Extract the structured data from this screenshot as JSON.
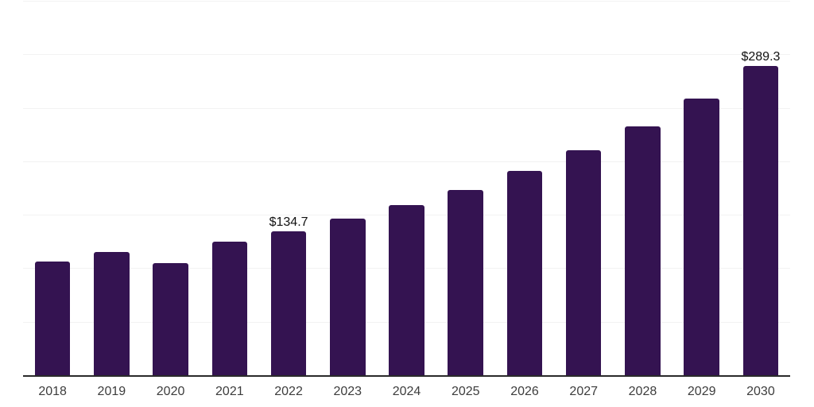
{
  "chart_data": {
    "type": "bar",
    "title": "",
    "xlabel": "",
    "ylabel": "",
    "categories": [
      "2018",
      "2019",
      "2020",
      "2021",
      "2022",
      "2023",
      "2024",
      "2025",
      "2026",
      "2027",
      "2028",
      "2029",
      "2030"
    ],
    "values": [
      106.0,
      115.1,
      105.0,
      124.8,
      134.7,
      146.6,
      159.0,
      173.4,
      190.8,
      210.4,
      232.3,
      258.9,
      289.3
    ],
    "value_labels": [
      null,
      null,
      null,
      null,
      "$134.7",
      null,
      null,
      null,
      null,
      null,
      null,
      null,
      "$289.3"
    ],
    "ylim": [
      0,
      350
    ],
    "grid_step": 50,
    "grid": true,
    "legend_position": "none",
    "bar_width_fraction": 0.6,
    "colors": {
      "bar": "#341351",
      "gridline": "#f2f2f2",
      "axis_line": "#2a2a2a",
      "tick_label": "#3d3d3d",
      "data_label": "#111111",
      "background": "#ffffff"
    }
  }
}
